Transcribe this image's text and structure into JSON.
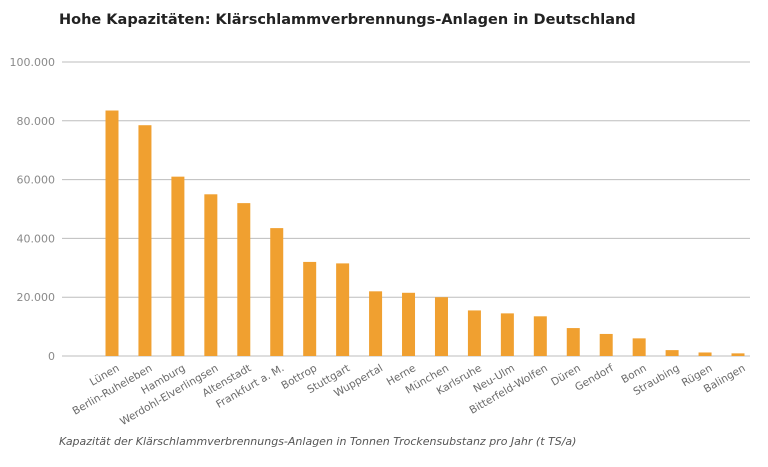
{
  "header": {
    "title": "Hohe Kapazitäten: Klärschlammverbrennungs-Anlagen in Deutschland"
  },
  "footer": {
    "caption": "Kapazität der Klärschlammverbrennungs-Anlagen in Tonnen Trockensubstanz pro Jahr (t TS/a)"
  },
  "chart_data": {
    "type": "bar",
    "title": "Hohe Kapazitäten: Klärschlammverbrennungs-Anlagen in Deutschland",
    "xlabel": "",
    "ylabel": "",
    "ylim": [
      0,
      100000
    ],
    "yticks": [
      0,
      20000,
      40000,
      60000,
      80000,
      100000
    ],
    "ytick_labels": [
      "0",
      "20.000",
      "40.000",
      "60.000",
      "80.000",
      "100.000"
    ],
    "grid": true,
    "bar_color": "#f0a030",
    "categories": [
      "Lünen",
      "Berlin-Ruheleben",
      "Hamburg",
      "Werdohl-Elverlingsen",
      "Altenstadt",
      "Frankfurt a. M.",
      "Bottrop",
      "Stuttgart",
      "Wuppertal",
      "Herne",
      "München",
      "Karlsruhe",
      "Neu-Ulm",
      "Bitterfeld-Wolfen",
      "Düren",
      "Gendorf",
      "Bonn",
      "Straubing",
      "Rügen",
      "Balingen"
    ],
    "values": [
      83500,
      78500,
      61000,
      55000,
      52000,
      43500,
      32000,
      31500,
      22000,
      21500,
      20000,
      15500,
      14500,
      13500,
      9500,
      7500,
      6000,
      2000,
      1200,
      900
    ]
  }
}
